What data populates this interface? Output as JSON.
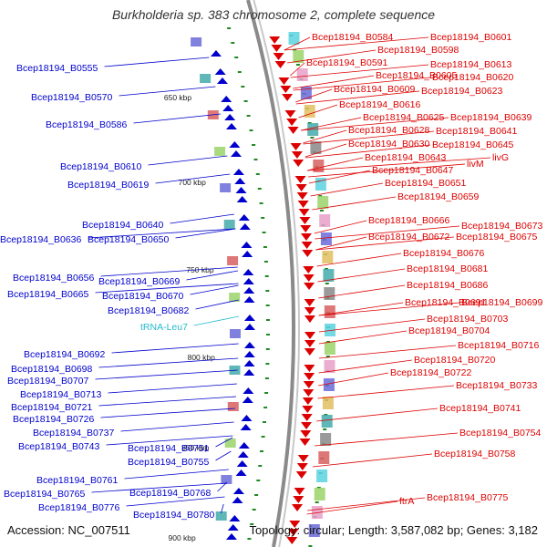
{
  "title": "Burkholderia sp. 383 chromosome 2, complete sequence",
  "footer": {
    "accession": "Accession: NC_007511",
    "topology": "Topology: circular; Length: 3,587,082 bp; Genes: 3,182"
  },
  "colors": {
    "reverse_strand": "#0000cc",
    "forward_strand": "#dd0000",
    "rna": "#22bbcc",
    "backbone": "#999999"
  },
  "scale_marks": [
    "650 kbp",
    "700 kbp",
    "750 kbp",
    "800 kbp",
    "850 kbp",
    "900 kbp"
  ],
  "left_labels": [
    "Bcep18194_B0555",
    "Bcep18194_B0570",
    "Bcep18194_B0586",
    "Bcep18194_B0610",
    "Bcep18194_B0619",
    "Bcep18194_B0640",
    "Bcep18194_B0636",
    "Bcep18194_B0650",
    "Bcep18194_B0656",
    "Bcep18194_B0669",
    "Bcep18194_B0665",
    "Bcep18194_B0670",
    "Bcep18194_B0682",
    "tRNA-Leu7",
    "Bcep18194_B0692",
    "Bcep18194_B0698",
    "Bcep18194_B0707",
    "Bcep18194_B0713",
    "Bcep18194_B0721",
    "Bcep18194_B0726",
    "Bcep18194_B0737",
    "Bcep18194_B0743",
    "Bcep18194_B0751",
    "Bcep18194_B0755",
    "Bcep18194_B0761",
    "Bcep18194_B0765",
    "Bcep18194_B0768",
    "Bcep18194_B0776",
    "Bcep18194_B0780"
  ],
  "right_labels": [
    "Bcep18194_B0584",
    "Bcep18194_B0601",
    "Bcep18194_B0598",
    "Bcep18194_B0591",
    "Bcep18194_B0613",
    "Bcep18194_B0605",
    "Bcep18194_B0620",
    "Bcep18194_B0609",
    "Bcep18194_B0623",
    "Bcep18194_B0616",
    "Bcep18194_B0625",
    "Bcep18194_B0639",
    "Bcep18194_B0628",
    "Bcep18194_B0641",
    "Bcep18194_B0630",
    "Bcep18194_B0645",
    "Bcep18194_B0643",
    "livG",
    "livM",
    "Bcep18194_B0647",
    "Bcep18194_B0651",
    "Bcep18194_B0659",
    "Bcep18194_B0666",
    "Bcep18194_B0673",
    "Bcep18194_B0672",
    "Bcep18194_B0675",
    "Bcep18194_B0676",
    "Bcep18194_B0681",
    "Bcep18194_B0686",
    "Bcep18194_B0691",
    "Bcep18194_B0699",
    "Bcep18194_B0703",
    "Bcep18194_B0704",
    "Bcep18194_B0716",
    "Bcep18194_B0720",
    "Bcep18194_B0722",
    "Bcep18194_B0733",
    "Bcep18194_B0741",
    "Bcep18194_B0754",
    "Bcep18194_B0758",
    "Bcep18194_B0775",
    "ftrA"
  ]
}
